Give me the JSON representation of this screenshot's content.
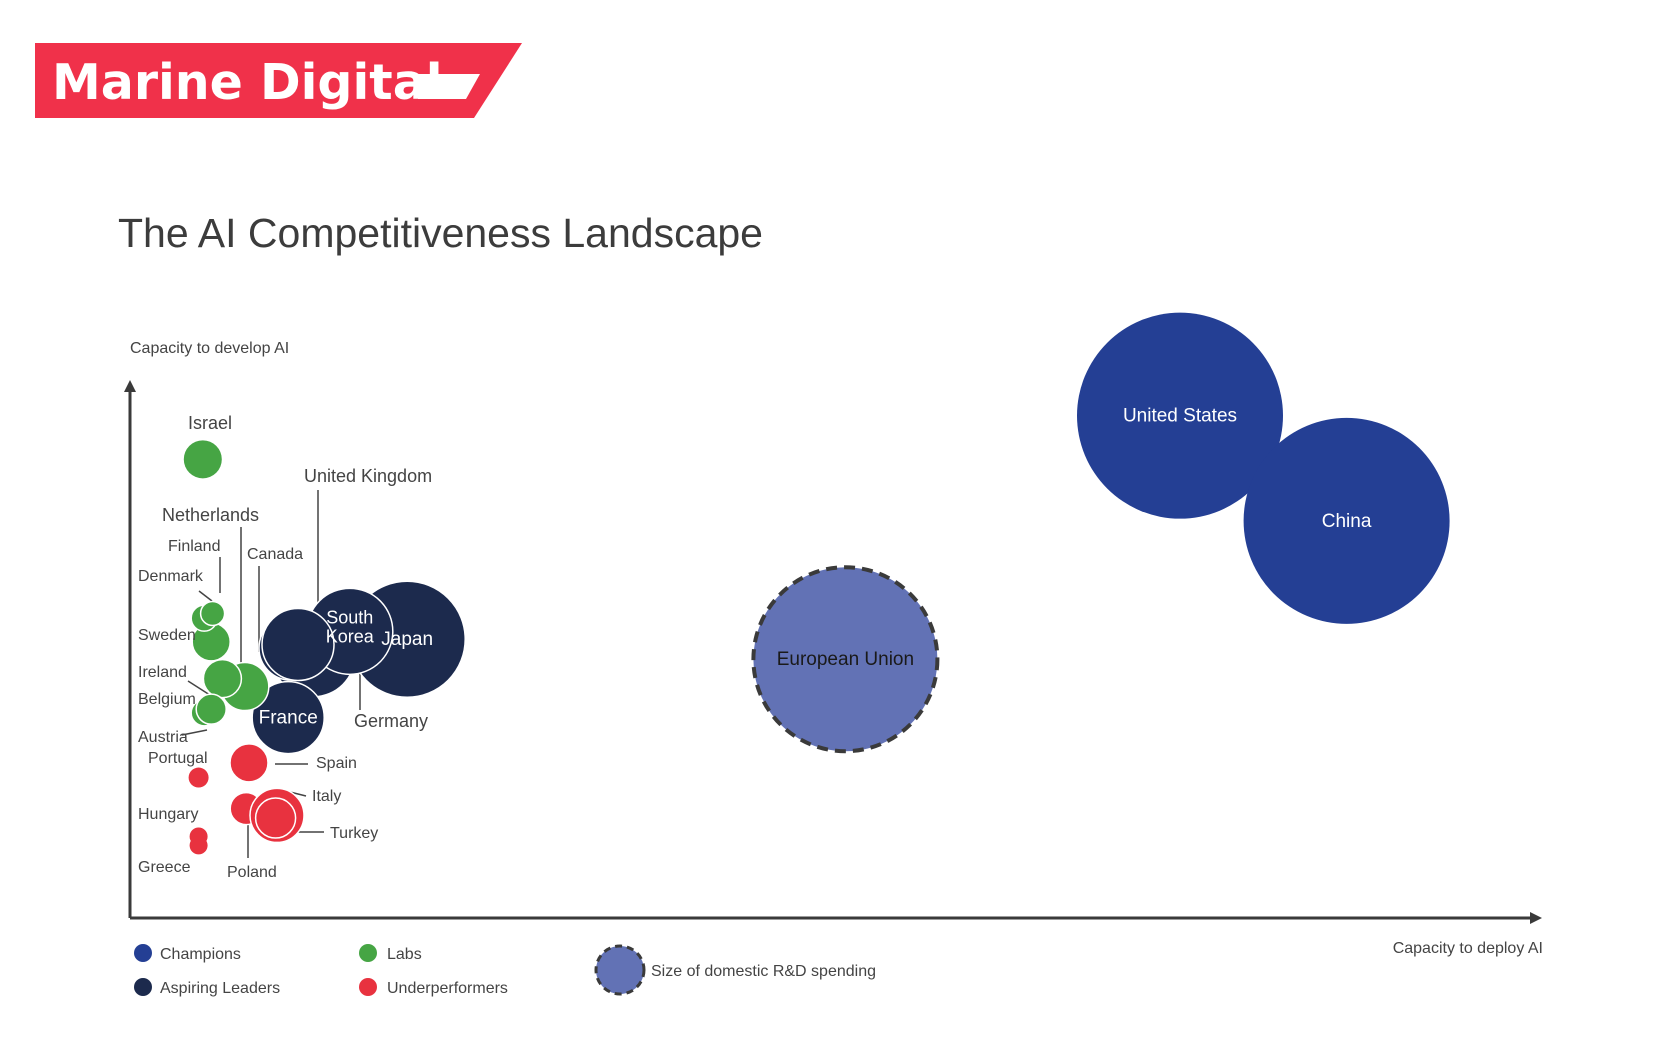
{
  "brand": {
    "name": "Marine Digital"
  },
  "colors": {
    "brand_red": "#F0314A",
    "champions": "#243F94",
    "aspiring_leaders": "#1C2A4D",
    "labs": "#46A544",
    "underperformers": "#E8323F",
    "eu": "#6272B5",
    "axis": "#3A3A3A",
    "text": "#444444"
  },
  "chart_data": {
    "type": "scatter",
    "title": "The AI Competitiveness Landscape",
    "ylabel": "Capacity to develop AI",
    "xlabel": "Capacity to deploy AI",
    "legend": {
      "placement": "bottom-left",
      "items": [
        {
          "label": "Champions",
          "group": "champions"
        },
        {
          "label": "Aspiring Leaders",
          "group": "aspiring_leaders"
        },
        {
          "label": "Labs",
          "group": "labs"
        },
        {
          "label": "Underperformers",
          "group": "underperformers"
        }
      ],
      "size_note": "Size of domestic R&D spending"
    },
    "points": [
      {
        "name": "United States",
        "group": "champions",
        "x": 75.0,
        "y": 95.5,
        "size": 103
      },
      {
        "name": "China",
        "group": "champions",
        "x": 86.9,
        "y": 75.5,
        "size": 103
      },
      {
        "name": "European Union",
        "group": "eu",
        "x": 51.1,
        "y": 49.2,
        "size": 92
      },
      {
        "name": "Japan",
        "group": "aspiring_leaders",
        "x": 19.8,
        "y": 53.0,
        "size": 58
      },
      {
        "name": "South Korea",
        "group": "aspiring_leaders",
        "x": 15.7,
        "y": 54.5,
        "size": 43
      },
      {
        "name": "Germany",
        "group": "aspiring_leaders",
        "x": 13.1,
        "y": 50.0,
        "size": 41
      },
      {
        "name": "France",
        "group": "aspiring_leaders",
        "x": 11.3,
        "y": 38.1,
        "size": 36
      },
      {
        "name": "United Kingdom",
        "group": "aspiring_leaders",
        "x": 12.0,
        "y": 52.0,
        "size": 36
      },
      {
        "name": "Canada",
        "group": "aspiring_leaders",
        "x": 11.5,
        "y": 51.3,
        "size": 32
      },
      {
        "name": "Israel",
        "group": "labs",
        "x": 5.2,
        "y": 87.2,
        "size": 19
      },
      {
        "name": "Netherlands",
        "group": "labs",
        "x": 8.2,
        "y": 44.0,
        "size": 24
      },
      {
        "name": "Finland",
        "group": "labs",
        "x": 5.9,
        "y": 57.9,
        "size": 12
      },
      {
        "name": "Denmark",
        "group": "labs",
        "x": 5.3,
        "y": 57.0,
        "size": 13
      },
      {
        "name": "Sweden",
        "group": "labs",
        "x": 5.8,
        "y": 52.5,
        "size": 19
      },
      {
        "name": "Ireland",
        "group": "labs",
        "x": 6.6,
        "y": 45.5,
        "size": 19
      },
      {
        "name": "Belgium",
        "group": "labs",
        "x": 5.8,
        "y": 39.7,
        "size": 15
      },
      {
        "name": "Austria",
        "group": "labs",
        "x": 5.3,
        "y": 39.0,
        "size": 13
      },
      {
        "name": "Spain",
        "group": "underperformers",
        "x": 8.5,
        "y": 29.5,
        "size": 19
      },
      {
        "name": "Portugal",
        "group": "underperformers",
        "x": 4.9,
        "y": 26.7,
        "size": 10
      },
      {
        "name": "Italy",
        "group": "underperformers",
        "x": 10.5,
        "y": 19.5,
        "size": 27
      },
      {
        "name": "Turkey",
        "group": "underperformers",
        "x": 10.4,
        "y": 19.0,
        "size": 20
      },
      {
        "name": "Poland",
        "group": "underperformers",
        "x": 8.3,
        "y": 20.8,
        "size": 16
      },
      {
        "name": "Hungary",
        "group": "underperformers",
        "x": 4.9,
        "y": 15.5,
        "size": 9
      },
      {
        "name": "Greece",
        "group": "underperformers",
        "x": 4.9,
        "y": 13.8,
        "size": 9
      }
    ]
  }
}
